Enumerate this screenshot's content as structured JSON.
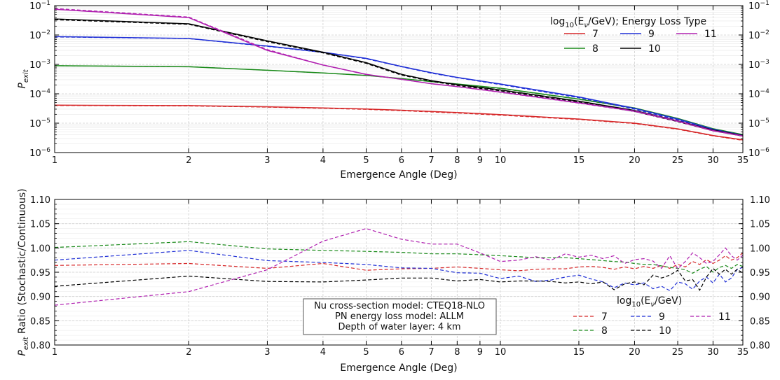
{
  "chart_data": [
    {
      "type": "line",
      "xlabel": "Emergence Angle (Deg)",
      "ylabel": "P",
      "ylabel_sub": "exit",
      "x_scale": "log",
      "y_scale": "log",
      "xlim": [
        1,
        35
      ],
      "ylim": [
        1e-06,
        0.1
      ],
      "x_ticks": [
        1,
        2,
        3,
        4,
        5,
        6,
        7,
        8,
        9,
        10,
        15,
        20,
        25,
        30,
        35
      ],
      "y_ticks": [
        1e-06,
        1e-05,
        0.0001,
        0.001,
        0.01,
        0.1
      ],
      "y_tick_labels": [
        {
          "base": "10",
          "exp": "−6"
        },
        {
          "base": "10",
          "exp": "−5"
        },
        {
          "base": "10",
          "exp": "−4"
        },
        {
          "base": "10",
          "exp": "−3"
        },
        {
          "base": "10",
          "exp": "−2"
        },
        {
          "base": "10",
          "exp": "−1"
        }
      ],
      "grid": true,
      "legend": {
        "placement": "top-right",
        "title_pre": "log",
        "title_sub": "10",
        "title_mid": "(E",
        "title_nu": "ν",
        "title_post": "/GeV); Energy Loss Type"
      },
      "series": [
        {
          "name": "7",
          "color": "#d62728",
          "x": [
            1,
            2,
            3,
            4,
            5,
            6,
            7,
            8,
            10,
            15,
            20,
            25,
            30,
            35
          ],
          "continuous": [
            4.1e-05,
            3.95e-05,
            3.6e-05,
            3.3e-05,
            3.05e-05,
            2.75e-05,
            2.5e-05,
            2.3e-05,
            1.95e-05,
            1.38e-05,
            1e-05,
            6.4e-06,
            3.8e-06,
            2.7e-06
          ],
          "stochastic": [
            4e-05,
            3.85e-05,
            3.5e-05,
            3.2e-05,
            2.95e-05,
            2.65e-05,
            2.4e-05,
            2.2e-05,
            1.87e-05,
            1.33e-05,
            9.7e-06,
            6.2e-06,
            3.7e-06,
            2.6e-06
          ]
        },
        {
          "name": "8",
          "color": "#1a8a1a",
          "x": [
            1,
            2,
            3,
            4,
            5,
            6,
            7,
            8,
            10,
            15,
            20,
            25,
            30,
            35
          ],
          "continuous": [
            0.0009,
            0.00083,
            0.00063,
            0.00051,
            0.00042,
            0.00033,
            0.00026,
            0.000215,
            0.000155,
            6.6e-05,
            3.3e-05,
            1.45e-05,
            6.5e-06,
            4.1e-06
          ],
          "stochastic": [
            0.0009,
            0.00084,
            0.00063,
            0.00051,
            0.00042,
            0.00033,
            0.00026,
            0.00021,
            0.000152,
            6.5e-05,
            3.2e-05,
            1.4e-05,
            6.3e-06,
            4e-06
          ]
        },
        {
          "name": "9",
          "color": "#1f2fd6",
          "x": [
            1,
            2,
            3,
            4,
            5,
            6,
            7,
            8,
            10,
            15,
            20,
            25,
            30,
            35
          ],
          "continuous": [
            0.0088,
            0.0076,
            0.0042,
            0.0026,
            0.0016,
            0.00085,
            0.00052,
            0.00036,
            0.000215,
            7.8e-05,
            3.2e-05,
            1.38e-05,
            6.2e-06,
            3.9e-06
          ],
          "stochastic": [
            0.0086,
            0.0075,
            0.0041,
            0.00255,
            0.00155,
            0.00083,
            0.0005,
            0.00035,
            0.000205,
            7.3e-05,
            3e-05,
            1.28e-05,
            5.8e-06,
            3.7e-06
          ]
        },
        {
          "name": "10",
          "color": "#000000",
          "x": [
            1,
            2,
            3,
            4,
            5,
            6,
            7,
            8,
            10,
            15,
            20,
            25,
            30,
            35
          ],
          "continuous": [
            0.035,
            0.024,
            0.0063,
            0.0026,
            0.00115,
            0.00046,
            0.00028,
            0.000205,
            0.000135,
            5.6e-05,
            2.7e-05,
            1.2e-05,
            5.8e-06,
            3.8e-06
          ],
          "stochastic": [
            0.033,
            0.023,
            0.0059,
            0.00245,
            0.00108,
            0.00043,
            0.000265,
            0.00019,
            0.000125,
            5.2e-05,
            2.5e-05,
            1.12e-05,
            5.5e-06,
            3.6e-06
          ]
        },
        {
          "name": "11",
          "color": "#b020b0",
          "x": [
            1,
            2,
            3,
            4,
            5,
            6,
            7,
            8,
            10,
            15,
            20,
            25,
            30,
            35
          ],
          "continuous": [
            0.075,
            0.039,
            0.003,
            0.00095,
            0.00046,
            0.00031,
            0.00022,
            0.000175,
            0.000115,
            4.9e-05,
            2.6e-05,
            1.18e-05,
            5.6e-06,
            3.7e-06
          ],
          "stochastic": [
            0.08,
            0.041,
            0.0032,
            0.00095,
            0.00045,
            0.00031,
            0.00022,
            0.000175,
            0.000112,
            4.8e-05,
            2.5e-05,
            1.15e-05,
            5.4e-06,
            3.6e-06
          ]
        }
      ]
    },
    {
      "type": "line",
      "xlabel": "Emergence Angle (Deg)",
      "ylabel_pre": "P",
      "ylabel_sub": "exit",
      "ylabel_post": " Ratio (Stochastic/Continuous)",
      "x_scale": "log",
      "xlim": [
        1,
        35
      ],
      "ylim": [
        0.8,
        1.1
      ],
      "x_ticks": [
        1,
        2,
        3,
        4,
        5,
        6,
        7,
        8,
        9,
        10,
        15,
        20,
        25,
        30,
        35
      ],
      "y_ticks": [
        0.8,
        0.85,
        0.9,
        0.95,
        1.0,
        1.05,
        1.1
      ],
      "y_tick_labels": [
        "0.80",
        "0.85",
        "0.90",
        "0.95",
        "1.00",
        "1.05",
        "1.10"
      ],
      "grid": true,
      "annotation": [
        "Nu cross-section model: CTEQ18-NLO",
        "PN energy loss model: ALLM",
        "Depth of water layer: 4 km"
      ],
      "legend": {
        "placement": "bottom-right",
        "title_pre": "log",
        "title_sub": "10",
        "title_mid": "(E",
        "title_nu": "ν",
        "title_post": "/GeV)"
      },
      "series": [
        {
          "name": "7",
          "color": "#d62728",
          "x": [
            1,
            2,
            3,
            4,
            5,
            6,
            7,
            8,
            9,
            10,
            11,
            12,
            13,
            14,
            15,
            16,
            17,
            18,
            19,
            20,
            21,
            22,
            23,
            24,
            25,
            26,
            27,
            28,
            29,
            30,
            31,
            32,
            33,
            34,
            35
          ],
          "values": [
            0.964,
            0.968,
            0.958,
            0.968,
            0.954,
            0.957,
            0.958,
            0.961,
            0.958,
            0.955,
            0.953,
            0.956,
            0.957,
            0.957,
            0.961,
            0.962,
            0.96,
            0.956,
            0.961,
            0.957,
            0.962,
            0.958,
            0.964,
            0.958,
            0.966,
            0.961,
            0.972,
            0.966,
            0.976,
            0.968,
            0.975,
            0.984,
            0.975,
            0.98,
            0.99
          ]
        },
        {
          "name": "8",
          "color": "#1a8a1a",
          "x": [
            1,
            2,
            3,
            4,
            5,
            6,
            7,
            8,
            9,
            10,
            11,
            12,
            13,
            14,
            15,
            16,
            17,
            18,
            19,
            20,
            21,
            22,
            23,
            24,
            25,
            26,
            27,
            28,
            29,
            30,
            31,
            32,
            33,
            34,
            35
          ],
          "values": [
            1.001,
            1.013,
            0.998,
            0.995,
            0.993,
            0.991,
            0.988,
            0.988,
            0.986,
            0.984,
            0.982,
            0.98,
            0.98,
            0.98,
            0.978,
            0.976,
            0.974,
            0.972,
            0.971,
            0.968,
            0.966,
            0.966,
            0.963,
            0.96,
            0.958,
            0.955,
            0.948,
            0.956,
            0.962,
            0.95,
            0.96,
            0.964,
            0.958,
            0.966,
            0.962
          ]
        },
        {
          "name": "9",
          "color": "#1f2fd6",
          "x": [
            1,
            2,
            3,
            4,
            5,
            6,
            7,
            8,
            9,
            10,
            11,
            12,
            13,
            14,
            15,
            16,
            17,
            18,
            19,
            20,
            21,
            22,
            23,
            24,
            25,
            26,
            27,
            28,
            29,
            30,
            31,
            32,
            33,
            34,
            35
          ],
          "values": [
            0.975,
            0.995,
            0.974,
            0.97,
            0.966,
            0.959,
            0.958,
            0.949,
            0.948,
            0.937,
            0.942,
            0.931,
            0.934,
            0.94,
            0.944,
            0.936,
            0.93,
            0.918,
            0.928,
            0.924,
            0.928,
            0.916,
            0.921,
            0.912,
            0.93,
            0.926,
            0.915,
            0.932,
            0.94,
            0.928,
            0.946,
            0.93,
            0.938,
            0.956,
            0.96
          ]
        },
        {
          "name": "10",
          "color": "#000000",
          "x": [
            1,
            2,
            3,
            4,
            5,
            6,
            7,
            8,
            9,
            10,
            11,
            12,
            13,
            14,
            15,
            16,
            17,
            18,
            19,
            20,
            21,
            22,
            23,
            24,
            25,
            26,
            27,
            28,
            29,
            30,
            31,
            32,
            33,
            34,
            35
          ],
          "values": [
            0.921,
            0.942,
            0.931,
            0.93,
            0.934,
            0.938,
            0.938,
            0.932,
            0.935,
            0.93,
            0.932,
            0.932,
            0.931,
            0.928,
            0.93,
            0.926,
            0.93,
            0.914,
            0.926,
            0.93,
            0.924,
            0.944,
            0.938,
            0.944,
            0.954,
            0.932,
            0.935,
            0.913,
            0.94,
            0.958,
            0.946,
            0.956,
            0.946,
            0.956,
            0.948
          ]
        },
        {
          "name": "11",
          "color": "#b020b0",
          "x": [
            1,
            2,
            3,
            4,
            5,
            6,
            7,
            8,
            9,
            10,
            11,
            12,
            13,
            14,
            15,
            16,
            17,
            18,
            19,
            20,
            21,
            22,
            23,
            24,
            25,
            26,
            27,
            28,
            29,
            30,
            31,
            32,
            33,
            34,
            35
          ],
          "values": [
            0.882,
            0.91,
            0.955,
            1.014,
            1.04,
            1.018,
            1.008,
            1.008,
            0.99,
            0.972,
            0.975,
            0.982,
            0.975,
            0.988,
            0.981,
            0.985,
            0.978,
            0.984,
            0.968,
            0.976,
            0.978,
            0.973,
            0.958,
            0.984,
            0.957,
            0.972,
            0.99,
            0.98,
            0.968,
            0.972,
            0.986,
            1.0,
            0.984,
            0.975,
            0.985
          ]
        }
      ]
    }
  ]
}
